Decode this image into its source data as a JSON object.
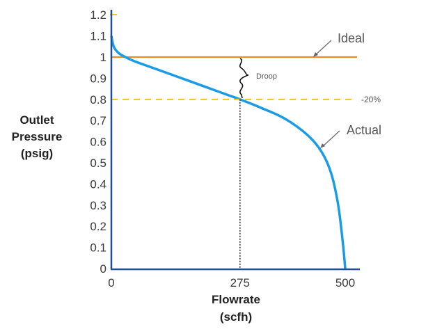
{
  "chart_data": {
    "type": "line",
    "title": "",
    "xlabel": "Flowrate (scfh)",
    "xlabel_lines": [
      "Flowrate",
      "(scfh)"
    ],
    "ylabel": "Outlet Pressure (psig)",
    "ylabel_lines": [
      "Outlet",
      "Pressure",
      "(psig)"
    ],
    "xlim": [
      0,
      525
    ],
    "ylim": [
      0,
      1.2
    ],
    "x_ticks": [
      "0",
      "275",
      "500"
    ],
    "x_tick_values": [
      0,
      275,
      500
    ],
    "y_ticks": [
      "0",
      "0.1",
      "0.2",
      "0.3",
      "0.4",
      "0.5",
      "0.6",
      "0.7",
      "0.8",
      "0.9",
      "1",
      "1.1",
      "1.2"
    ],
    "y_tick_values": [
      0,
      0.1,
      0.2,
      0.3,
      0.4,
      0.5,
      0.6,
      0.7,
      0.8,
      0.9,
      1.0,
      1.1,
      1.2
    ],
    "grid": false,
    "legend": "none (inline annotations)",
    "series": [
      {
        "name": "Ideal",
        "color": "#f08a24",
        "style": "solid",
        "x": [
          0,
          525
        ],
        "y": [
          1.0,
          1.0
        ]
      },
      {
        "name": "Actual",
        "color": "#1a9be6",
        "style": "solid",
        "x": [
          0,
          5,
          15,
          30,
          50,
          100,
          150,
          200,
          250,
          275,
          320,
          370,
          420,
          450,
          470,
          485,
          495,
          500
        ],
        "y": [
          1.1,
          1.05,
          1.02,
          1.0,
          0.98,
          0.94,
          0.9,
          0.86,
          0.82,
          0.8,
          0.76,
          0.71,
          0.63,
          0.55,
          0.45,
          0.3,
          0.12,
          0.0
        ]
      },
      {
        "name": "-20% threshold",
        "color": "#f5c518",
        "style": "dashed",
        "x": [
          0,
          525
        ],
        "y": [
          0.8,
          0.8
        ]
      }
    ],
    "reference_lines": [
      {
        "type": "vertical",
        "x": 275,
        "y_from": 0,
        "y_to": 0.8,
        "style": "dotted",
        "color": "#333333"
      }
    ],
    "annotations": [
      {
        "text": "Ideal",
        "points_to": "Ideal line"
      },
      {
        "text": "Actual",
        "points_to": "Actual curve"
      },
      {
        "text": "Droop",
        "between": [
          1.0,
          0.8
        ],
        "at_x": 275
      },
      {
        "text": "-20%",
        "at_y": 0.8
      }
    ]
  },
  "colors": {
    "axis": "#1f4e96",
    "ideal": "#f08a24",
    "actual": "#1a9be6",
    "threshold": "#f5c518",
    "text": "#3a3a3a"
  }
}
